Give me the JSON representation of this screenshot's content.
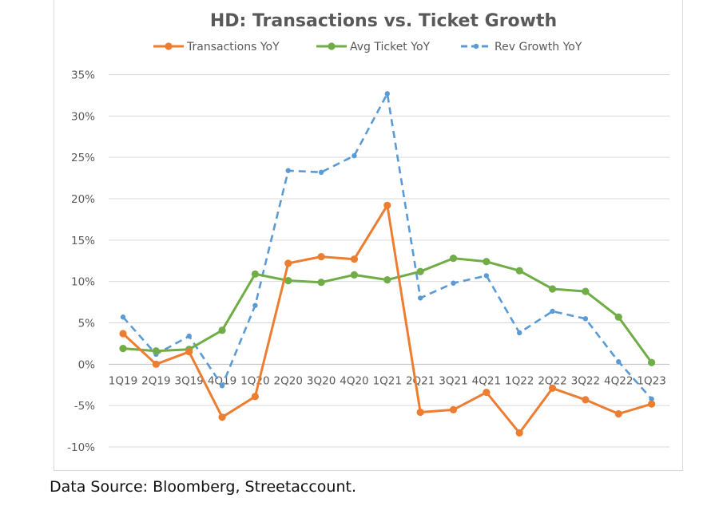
{
  "chart_data": {
    "type": "line",
    "title": "HD: Transactions vs. Ticket Growth",
    "categories": [
      "1Q19",
      "2Q19",
      "3Q19",
      "4Q19",
      "1Q20",
      "2Q20",
      "3Q20",
      "4Q20",
      "1Q21",
      "2Q21",
      "3Q21",
      "4Q21",
      "1Q22",
      "2Q22",
      "3Q22",
      "4Q22",
      "1Q23"
    ],
    "yticks": [
      "35%",
      "30%",
      "25%",
      "20%",
      "15%",
      "10%",
      "5%",
      "0%",
      "-5%",
      "-10%"
    ],
    "ylim": [
      -10,
      35
    ],
    "grid": true,
    "legend_position": "top",
    "series": [
      {
        "name": "Transactions YoY",
        "color": "#ED7D31",
        "style": "solid",
        "values": [
          3.7,
          0.0,
          1.5,
          -6.4,
          -3.9,
          12.2,
          13.0,
          12.7,
          19.2,
          -5.8,
          -5.5,
          -3.4,
          -8.3,
          -2.9,
          -4.3,
          -6.0,
          -4.8
        ]
      },
      {
        "name": "Avg Ticket YoY",
        "color": "#70AD47",
        "style": "solid",
        "values": [
          1.9,
          1.6,
          1.8,
          4.1,
          10.9,
          10.1,
          9.9,
          10.8,
          10.2,
          11.2,
          12.8,
          12.4,
          11.3,
          9.1,
          8.8,
          5.7,
          0.2
        ]
      },
      {
        "name": "Rev Growth YoY",
        "color": "#5B9BD5",
        "style": "dashed",
        "values": [
          5.7,
          1.2,
          3.4,
          -2.6,
          7.1,
          23.4,
          23.2,
          25.2,
          32.7,
          8.0,
          9.8,
          10.7,
          3.8,
          6.4,
          5.5,
          0.3,
          -4.2
        ]
      }
    ]
  },
  "source_note": "Data Source: Bloomberg, Streetaccount."
}
